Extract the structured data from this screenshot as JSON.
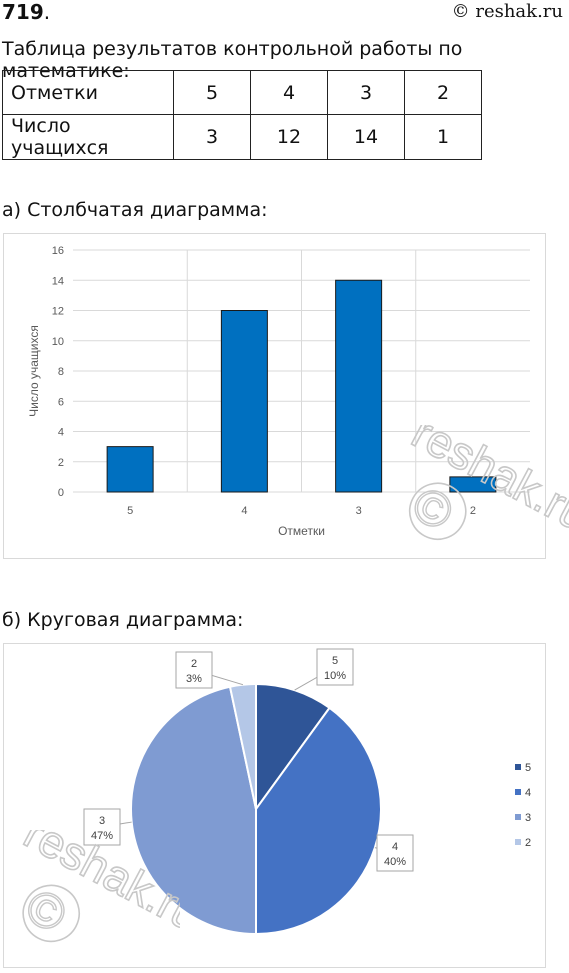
{
  "header": {
    "problem_number": "719",
    "problem_suffix": ".",
    "source": "© reshak.ru"
  },
  "table": {
    "caption": "Таблица результатов контрольной работы по математике:",
    "rows": [
      {
        "label": "Отметки",
        "cells": [
          "5",
          "4",
          "3",
          "2"
        ]
      },
      {
        "label": "Число учащихся",
        "cells": [
          "3",
          "12",
          "14",
          "1"
        ]
      }
    ]
  },
  "bar_section": {
    "caption": "а) Столбчатая диаграмма:"
  },
  "pie_section": {
    "caption": "б) Круговая диаграмма:"
  },
  "watermark": {
    "text": "reshak.ru",
    "symbol": "©"
  },
  "colors": {
    "bar_fill": "#0070c0",
    "pie": [
      "#2f5597",
      "#4472c4",
      "#7f9bd2",
      "#b4c7e7"
    ],
    "grid": "#d9d9d9",
    "axis_text": "#595959"
  },
  "chart_data": [
    {
      "type": "bar",
      "categories": [
        "5",
        "4",
        "3",
        "2"
      ],
      "values": [
        3,
        12,
        14,
        1
      ],
      "title": "",
      "xlabel": "Отметки",
      "ylabel": "Число учащихся",
      "ylim": [
        0,
        16
      ],
      "yticks": [
        "0",
        "2",
        "4",
        "6",
        "8",
        "10",
        "12",
        "14",
        "16"
      ],
      "grid": true,
      "legend": "none"
    },
    {
      "type": "pie",
      "categories": [
        "5",
        "4",
        "3",
        "2"
      ],
      "values": [
        3,
        12,
        14,
        1
      ],
      "percent_labels": [
        "10%",
        "40%",
        "47%",
        "3%"
      ],
      "title": "",
      "legend": "right"
    }
  ]
}
